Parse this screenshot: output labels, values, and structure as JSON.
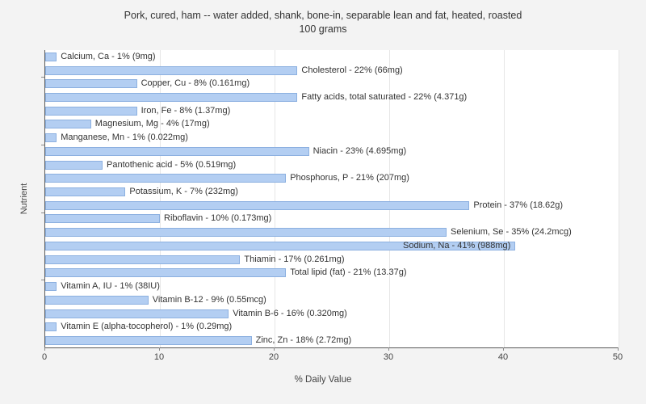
{
  "chart_data": {
    "type": "bar",
    "orientation": "horizontal",
    "title": "Pork, cured, ham -- water added, shank, bone-in, separable lean and fat, heated, roasted",
    "subtitle": "100 grams",
    "xlabel": "% Daily Value",
    "ylabel": "Nutrient",
    "xlim": [
      0,
      50
    ],
    "x_ticks": [
      0,
      10,
      20,
      30,
      40,
      50
    ],
    "grid": true,
    "legend": "none",
    "bar_color": "#b3cef2",
    "bar_border_color": "#8cb0e0",
    "bars": [
      {
        "label": "Calcium, Ca - 1% (9mg)",
        "value": 1
      },
      {
        "label": "Cholesterol - 22% (66mg)",
        "value": 22
      },
      {
        "label": "Copper, Cu - 8% (0.161mg)",
        "value": 8
      },
      {
        "label": "Fatty acids, total saturated - 22% (4.371g)",
        "value": 22
      },
      {
        "label": "Iron, Fe - 8% (1.37mg)",
        "value": 8
      },
      {
        "label": "Magnesium, Mg - 4% (17mg)",
        "value": 4
      },
      {
        "label": "Manganese, Mn - 1% (0.022mg)",
        "value": 1
      },
      {
        "label": "Niacin - 23% (4.695mg)",
        "value": 23
      },
      {
        "label": "Pantothenic acid - 5% (0.519mg)",
        "value": 5
      },
      {
        "label": "Phosphorus, P - 21% (207mg)",
        "value": 21
      },
      {
        "label": "Potassium, K - 7% (232mg)",
        "value": 7
      },
      {
        "label": "Protein - 37% (18.62g)",
        "value": 37
      },
      {
        "label": "Riboflavin - 10% (0.173mg)",
        "value": 10
      },
      {
        "label": "Selenium, Se - 35% (24.2mcg)",
        "value": 35
      },
      {
        "label": "Sodium, Na - 41% (988mg)",
        "value": 41
      },
      {
        "label": "Thiamin - 17% (0.261mg)",
        "value": 17
      },
      {
        "label": "Total lipid (fat) - 21% (13.37g)",
        "value": 21
      },
      {
        "label": "Vitamin A, IU - 1% (38IU)",
        "value": 1
      },
      {
        "label": "Vitamin B-12 - 9% (0.55mcg)",
        "value": 9
      },
      {
        "label": "Vitamin B-6 - 16% (0.320mg)",
        "value": 16
      },
      {
        "label": "Vitamin E (alpha-tocopherol) - 1% (0.29mg)",
        "value": 1
      },
      {
        "label": "Zinc, Zn - 18% (2.72mg)",
        "value": 18
      }
    ]
  }
}
